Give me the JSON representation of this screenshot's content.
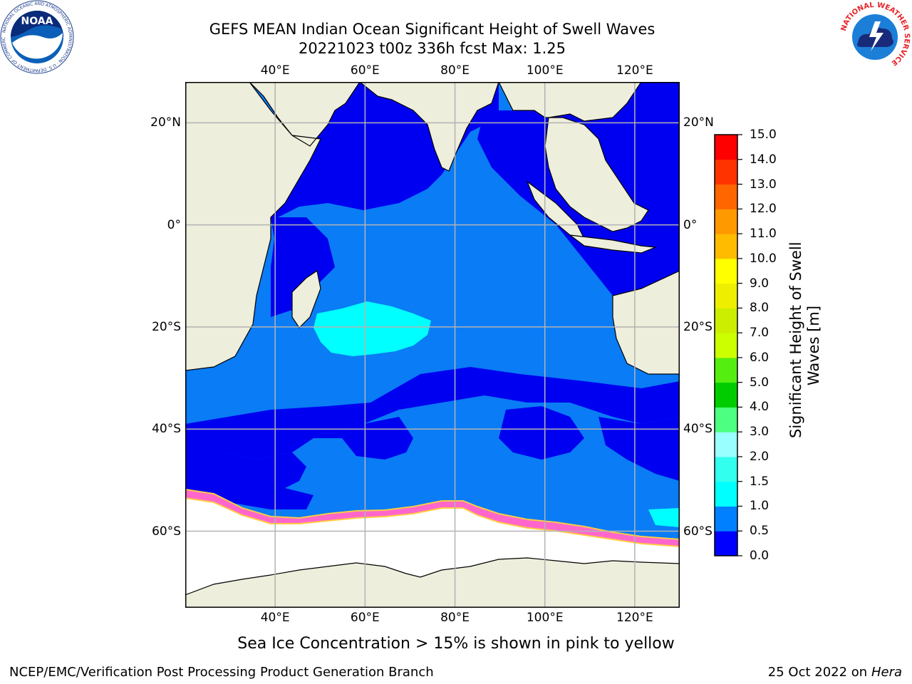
{
  "header": {
    "title_line1": "GEFS MEAN Indian Ocean Significant Height of Swell Waves",
    "title_line2": "20221023 t00z 336h fcst   Max: 1.25"
  },
  "logos": {
    "noaa_text": "NOAA",
    "noaa_ring_text": "NATIONAL OCEANIC AND ATMOSPHERIC ADMINISTRATION · U.S. DEPARTMENT OF COMMERCE",
    "nws_ring_text": "NATIONAL WEATHER SERVICE"
  },
  "map": {
    "lon_range": [
      20,
      130
    ],
    "lat_range": [
      -75,
      28
    ],
    "lon_ticks": [
      {
        "value": 40,
        "label": "40°E"
      },
      {
        "value": 60,
        "label": "60°E"
      },
      {
        "value": 80,
        "label": "80°E"
      },
      {
        "value": 100,
        "label": "100°E"
      },
      {
        "value": 120,
        "label": "120°E"
      }
    ],
    "lat_ticks": [
      {
        "value": 20,
        "label": "20°N"
      },
      {
        "value": 0,
        "label": "0°"
      },
      {
        "value": -20,
        "label": "20°S"
      },
      {
        "value": -40,
        "label": "40°S"
      },
      {
        "value": -60,
        "label": "60°S"
      }
    ],
    "grid": true,
    "colors": {
      "land": "#eeeedc",
      "ocean": "#0a7cf5",
      "low_swell": "#0000f0",
      "mid_swell": "#00ffff",
      "sea_ice": "#ff66cc",
      "ice_edge": "#ffcc44",
      "no_data": "#ffffff",
      "grid": "#b3b3b3"
    }
  },
  "colorbar": {
    "label": "Significant Height of Swell Waves [m]",
    "label_line1": "Significant Height of Swell",
    "label_line2": "Waves [m]",
    "bins": [
      {
        "from": 0.0,
        "to": 0.5,
        "color": "#0000ff"
      },
      {
        "from": 0.5,
        "to": 1.0,
        "color": "#0080ff"
      },
      {
        "from": 1.0,
        "to": 1.5,
        "color": "#00ffff"
      },
      {
        "from": 1.5,
        "to": 2.0,
        "color": "#33ffee"
      },
      {
        "from": 2.0,
        "to": 3.0,
        "color": "#99ffff"
      },
      {
        "from": 3.0,
        "to": 4.0,
        "color": "#4dff80"
      },
      {
        "from": 4.0,
        "to": 5.0,
        "color": "#00cc00"
      },
      {
        "from": 5.0,
        "to": 6.0,
        "color": "#55ee11"
      },
      {
        "from": 6.0,
        "to": 7.0,
        "color": "#ccff00"
      },
      {
        "from": 7.0,
        "to": 8.0,
        "color": "#ccee00"
      },
      {
        "from": 8.0,
        "to": 9.0,
        "color": "#eeee00"
      },
      {
        "from": 9.0,
        "to": 10.0,
        "color": "#ffff00"
      },
      {
        "from": 10.0,
        "to": 11.0,
        "color": "#ffbb00"
      },
      {
        "from": 11.0,
        "to": 12.0,
        "color": "#ff9900"
      },
      {
        "from": 12.0,
        "to": 13.0,
        "color": "#ff6600"
      },
      {
        "from": 13.0,
        "to": 14.0,
        "color": "#ff3300"
      },
      {
        "from": 14.0,
        "to": 15.0,
        "color": "#ff0000"
      }
    ],
    "ticks": [
      "0.0",
      "0.5",
      "1.0",
      "1.5",
      "2.0",
      "3.0",
      "4.0",
      "5.0",
      "6.0",
      "7.0",
      "8.0",
      "9.0",
      "10.0",
      "11.0",
      "12.0",
      "13.0",
      "14.0",
      "15.0"
    ]
  },
  "notes": {
    "sea_ice": "Sea Ice Concentration > 15% is shown in pink to yellow"
  },
  "footer": {
    "left": "NCEP/EMC/Verification Post Processing Product Generation Branch",
    "right_date": "25 Oct 2022 on ",
    "right_machine": "Hera"
  }
}
